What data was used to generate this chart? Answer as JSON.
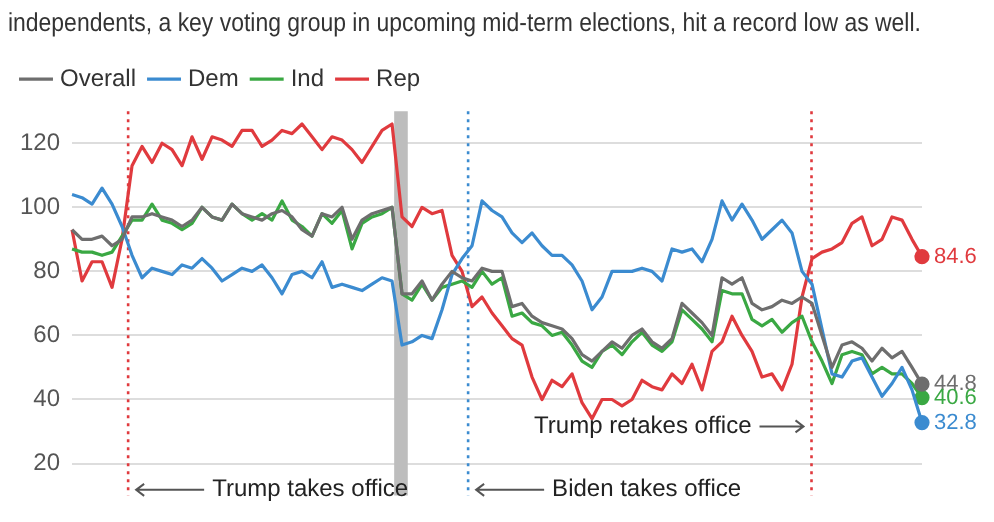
{
  "chart_data": {
    "type": "line",
    "title": "independents, a key voting group in upcoming mid-term elections, hit a record low as well.",
    "categories": [
      null,
      null,
      null,
      null,
      null,
      null,
      null,
      null,
      null,
      null,
      null,
      null,
      null,
      null,
      null,
      null,
      null,
      null,
      null,
      null,
      null,
      null,
      null,
      null,
      null,
      null,
      null,
      null,
      null,
      null,
      null,
      null,
      null,
      null,
      null,
      null,
      null,
      null,
      null,
      null,
      null,
      null,
      null,
      null,
      null,
      null,
      null,
      null,
      null,
      null,
      null,
      null,
      null,
      null,
      null,
      null,
      null,
      null,
      null,
      null,
      null,
      null,
      null,
      null,
      null,
      null,
      null,
      null,
      null,
      null,
      null,
      null,
      null,
      null,
      null,
      null,
      null,
      null,
      null,
      null,
      null,
      null,
      null,
      null,
      null,
      null
    ],
    "series": [
      {
        "name": "Overall",
        "color": "#6e6e6e",
        "values": [
          93,
          90,
          90,
          91,
          88,
          90,
          97,
          97,
          98,
          97,
          96,
          94,
          96,
          100,
          97,
          96,
          101,
          98,
          97,
          96,
          98,
          99,
          97,
          93,
          91,
          98,
          97,
          100,
          90,
          96,
          98,
          99,
          100,
          73,
          73,
          77,
          71,
          76,
          80,
          78,
          77,
          81,
          80,
          80,
          69,
          70,
          66,
          64,
          63,
          62,
          59,
          54,
          52,
          55,
          58,
          56,
          60,
          62,
          58,
          56,
          59,
          70,
          67,
          64,
          60,
          78,
          76,
          78,
          70,
          68,
          69,
          71,
          70,
          72,
          70,
          60,
          50,
          57,
          58,
          56,
          52,
          56,
          53,
          55,
          50,
          44.8
        ],
        "value_labels": [
          null,
          null,
          null,
          null,
          null,
          null,
          null,
          null,
          null,
          null,
          null,
          null,
          null,
          null,
          null,
          null,
          null,
          null,
          null,
          null,
          null,
          null,
          null,
          null,
          null,
          null,
          null,
          null,
          null,
          null,
          null,
          null,
          null,
          null,
          null,
          null,
          null,
          null,
          null,
          null,
          null,
          null,
          null,
          null,
          null,
          null,
          null,
          null,
          null,
          null,
          null,
          null,
          null,
          null,
          null,
          null,
          null,
          null,
          null,
          null,
          null,
          null,
          null,
          null,
          null,
          null,
          null,
          null,
          null,
          null,
          null,
          null,
          null,
          null,
          null,
          null,
          null,
          null,
          null,
          null,
          null,
          null,
          null,
          null,
          null,
          "44.8"
        ]
      },
      {
        "name": "Dem",
        "color": "#3b8bd0",
        "values": [
          104,
          103,
          101,
          106,
          101,
          94,
          85,
          78,
          81,
          80,
          79,
          82,
          81,
          84,
          81,
          77,
          79,
          81,
          80,
          82,
          78,
          73,
          79,
          80,
          78,
          83,
          75,
          76,
          75,
          74,
          76,
          78,
          77,
          57,
          58,
          60,
          59,
          68,
          79,
          84,
          88,
          102,
          99,
          97,
          92,
          89,
          92,
          88,
          85,
          85,
          82,
          77,
          68,
          72,
          80,
          80,
          80,
          81,
          80,
          77,
          87,
          86,
          87,
          83,
          90,
          102,
          96,
          101,
          96,
          90,
          93,
          96,
          92,
          80,
          76,
          62,
          48,
          47,
          52,
          53,
          47,
          41,
          45,
          50,
          43,
          32.8
        ],
        "value_labels": [
          null,
          null,
          null,
          null,
          null,
          null,
          null,
          null,
          null,
          null,
          null,
          null,
          null,
          null,
          null,
          null,
          null,
          null,
          null,
          null,
          null,
          null,
          null,
          null,
          null,
          null,
          null,
          null,
          null,
          null,
          null,
          null,
          null,
          null,
          null,
          null,
          null,
          null,
          null,
          null,
          null,
          null,
          null,
          null,
          null,
          null,
          null,
          null,
          null,
          null,
          null,
          null,
          null,
          null,
          null,
          null,
          null,
          null,
          null,
          null,
          null,
          null,
          null,
          null,
          null,
          null,
          null,
          null,
          null,
          null,
          null,
          null,
          null,
          null,
          null,
          null,
          null,
          null,
          null,
          null,
          null,
          null,
          null,
          null,
          null,
          "32.8"
        ]
      },
      {
        "name": "Ind",
        "color": "#3aa843",
        "values": [
          87,
          86,
          86,
          85,
          86,
          91,
          96,
          96,
          101,
          96,
          95,
          93,
          95,
          100,
          97,
          96,
          101,
          98,
          96,
          98,
          96,
          102,
          96,
          94,
          91,
          98,
          95,
          99,
          87,
          95,
          97,
          98,
          100,
          73,
          71,
          76,
          71,
          75,
          76,
          77,
          75,
          80,
          76,
          78,
          66,
          67,
          64,
          63,
          60,
          61,
          57,
          52,
          50,
          55,
          57,
          54,
          58,
          61,
          57,
          55,
          58,
          68,
          65,
          62,
          58,
          74,
          73,
          73,
          65,
          63,
          65,
          61,
          64,
          66,
          58,
          52,
          45,
          54,
          55,
          54,
          48,
          50,
          48,
          48,
          45,
          40.6
        ],
        "value_labels": [
          null,
          null,
          null,
          null,
          null,
          null,
          null,
          null,
          null,
          null,
          null,
          null,
          null,
          null,
          null,
          null,
          null,
          null,
          null,
          null,
          null,
          null,
          null,
          null,
          null,
          null,
          null,
          null,
          null,
          null,
          null,
          null,
          null,
          null,
          null,
          null,
          null,
          null,
          null,
          null,
          null,
          null,
          null,
          null,
          null,
          null,
          null,
          null,
          null,
          null,
          null,
          null,
          null,
          null,
          null,
          null,
          null,
          null,
          null,
          null,
          null,
          null,
          null,
          null,
          null,
          null,
          null,
          null,
          null,
          null,
          null,
          null,
          null,
          null,
          null,
          null,
          null,
          null,
          null,
          null,
          null,
          null,
          null,
          null,
          null,
          "40.6"
        ]
      },
      {
        "name": "Rep",
        "color": "#e03a3e",
        "values": [
          93,
          77,
          83,
          83,
          75,
          90,
          113,
          119,
          114,
          120,
          118,
          113,
          122,
          115,
          122,
          121,
          119,
          124,
          124,
          119,
          121,
          124,
          123,
          126,
          122,
          118,
          122,
          121,
          118,
          114,
          119,
          124,
          126,
          97,
          94,
          100,
          98,
          99,
          85,
          80,
          69,
          72,
          67,
          63,
          59,
          57,
          47,
          40,
          46,
          44,
          48,
          39,
          34,
          40,
          40,
          38,
          40,
          46,
          44,
          43,
          48,
          45,
          51,
          43,
          55,
          58,
          66,
          60,
          55,
          47,
          48,
          43,
          51,
          72,
          84,
          86,
          87,
          89,
          95,
          97,
          88,
          90,
          97,
          96,
          90,
          84.6
        ],
        "value_labels": [
          null,
          null,
          null,
          null,
          null,
          null,
          null,
          null,
          null,
          null,
          null,
          null,
          null,
          null,
          null,
          null,
          null,
          null,
          null,
          null,
          null,
          null,
          null,
          null,
          null,
          null,
          null,
          null,
          null,
          null,
          null,
          null,
          null,
          null,
          null,
          null,
          null,
          null,
          null,
          null,
          null,
          null,
          null,
          null,
          null,
          null,
          null,
          null,
          null,
          null,
          null,
          null,
          null,
          null,
          null,
          null,
          null,
          null,
          null,
          null,
          null,
          null,
          null,
          null,
          null,
          null,
          null,
          null,
          null,
          null,
          null,
          null,
          null,
          null,
          null,
          null,
          null,
          null,
          null,
          null,
          null,
          null,
          null,
          null,
          null,
          "84.6"
        ]
      }
    ],
    "ylim": [
      10,
      130
    ],
    "yticks": [
      20,
      40,
      60,
      80,
      100,
      120
    ],
    "tick_labels": "y",
    "grid": "y",
    "legend": "top left",
    "line_style": "solid",
    "annotations": [
      "Trump takes office",
      "Biden takes office",
      "Trump retakes office"
    ]
  }
}
